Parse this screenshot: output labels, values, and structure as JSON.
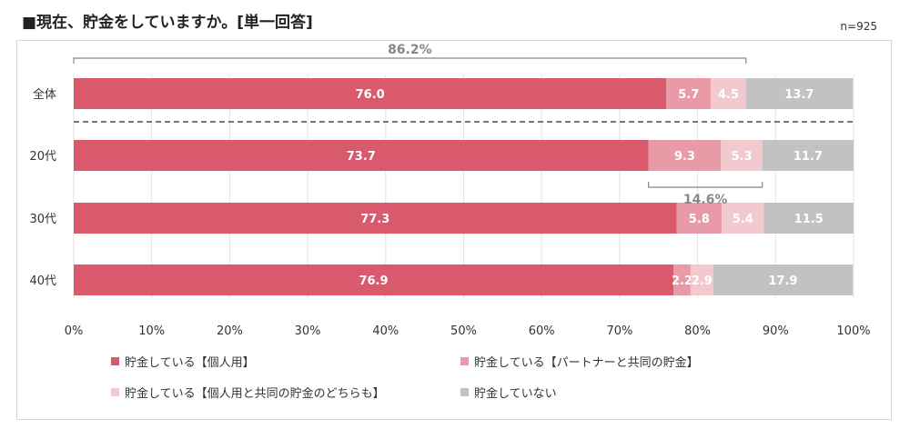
{
  "title": "■現在、貯金をしていますか。[単一回答]",
  "sample_size": "n=925",
  "colors": {
    "personal": "#d9596d",
    "partner": "#e89aa6",
    "both": "#f3c9d0",
    "none": "#c2c2c2"
  },
  "chart_data": {
    "type": "bar",
    "orientation": "horizontal",
    "stacked": true,
    "categories": [
      "全体",
      "20代",
      "30代",
      "40代"
    ],
    "series": [
      {
        "name": "貯金している【個人用】",
        "values": [
          76.0,
          73.7,
          77.3,
          76.9
        ]
      },
      {
        "name": "貯金している【パートナーと共同の貯金】",
        "values": [
          5.7,
          9.3,
          5.8,
          2.2
        ]
      },
      {
        "name": "貯金している【個人用と共同の貯金のどちらも】",
        "values": [
          4.5,
          5.3,
          5.4,
          2.9
        ]
      },
      {
        "name": "貯金していない",
        "values": [
          13.7,
          11.7,
          11.5,
          17.9
        ]
      }
    ],
    "xlim": [
      0,
      100
    ],
    "x_ticks": [
      "0%",
      "10%",
      "20%",
      "30%",
      "40%",
      "50%",
      "60%",
      "70%",
      "80%",
      "90%",
      "100%"
    ],
    "annotations": [
      {
        "text": "86.2%",
        "category": "全体",
        "range": [
          0,
          86.2
        ],
        "position": "above"
      },
      {
        "text": "14.6%",
        "category": "20代",
        "range": [
          73.7,
          88.3
        ],
        "position": "below"
      }
    ],
    "separator_after": "全体",
    "legend_position": "bottom"
  }
}
